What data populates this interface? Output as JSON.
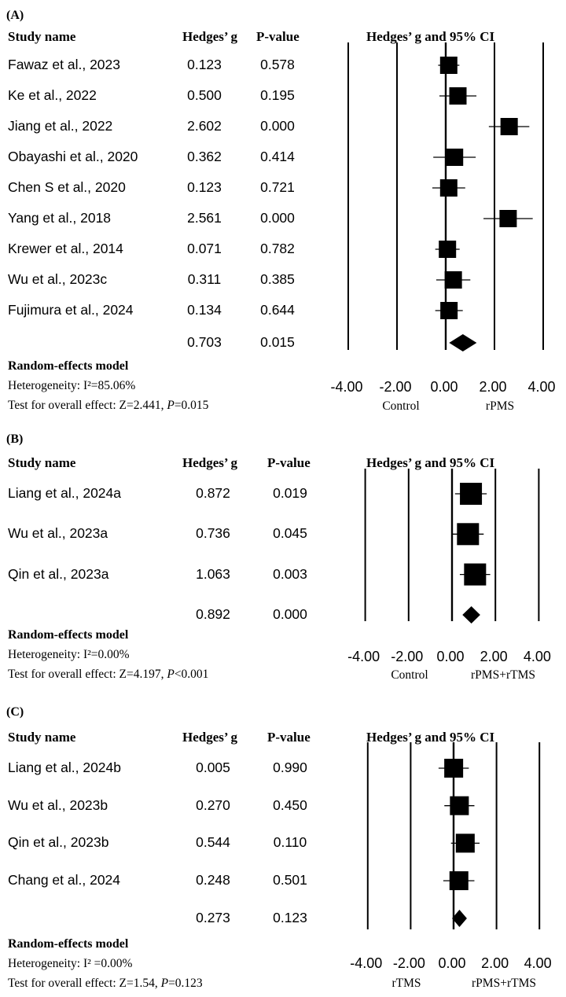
{
  "chart_data": [
    {
      "type": "forest",
      "panel_label": "(A)",
      "headers": {
        "study": "Study name",
        "g": "Hedges’ g",
        "p": "P-value",
        "ci": "Hedges’ g and 95% CI"
      },
      "studies": [
        {
          "name": "Fawaz et al., 2023",
          "g": "0.123",
          "p": "0.578",
          "value": 0.123,
          "lo": -0.31,
          "hi": 0.56
        },
        {
          "name": "Ke et al., 2022",
          "g": "0.500",
          "p": "0.195",
          "value": 0.5,
          "lo": -0.26,
          "hi": 1.26
        },
        {
          "name": "Jiang et al., 2022",
          "g": "2.602",
          "p": "0.000",
          "value": 2.602,
          "lo": 1.77,
          "hi": 3.43
        },
        {
          "name": "Obayashi et al., 2020",
          "g": "0.362",
          "p": "0.414",
          "value": 0.362,
          "lo": -0.51,
          "hi": 1.23
        },
        {
          "name": "Chen S et al., 2020",
          "g": "0.123",
          "p": "0.721",
          "value": 0.123,
          "lo": -0.55,
          "hi": 0.8
        },
        {
          "name": "Yang et al., 2018",
          "g": "2.561",
          "p": "0.000",
          "value": 2.561,
          "lo": 1.55,
          "hi": 3.57
        },
        {
          "name": "Krewer et al., 2014",
          "g": "0.071",
          "p": "0.782",
          "value": 0.071,
          "lo": -0.43,
          "hi": 0.57
        },
        {
          "name": "Wu et al., 2023c",
          "g": "0.311",
          "p": "0.385",
          "value": 0.311,
          "lo": -0.39,
          "hi": 1.01
        },
        {
          "name": "Fujimura et al., 2024",
          "g": "0.134",
          "p": "0.644",
          "value": 0.134,
          "lo": -0.43,
          "hi": 0.7
        }
      ],
      "summary": {
        "g": "0.703",
        "p": "0.015",
        "value": 0.703,
        "lo": 0.14,
        "hi": 1.27
      },
      "model_label": "Random-effects model",
      "heterogeneity": "Heterogeneity: I²=85.06%",
      "overall_prefix": "Test for overall effect: Z=2.441, ",
      "overall_p_letter": "P",
      "overall_p_rest": "=0.015",
      "ticks": [
        -4,
        -2,
        0,
        2,
        4
      ],
      "tick_labels": [
        "-4.00",
        "-2.00",
        "0.00",
        "2.00",
        "4.00"
      ],
      "left_label": "Control",
      "right_label": "rPMS"
    },
    {
      "type": "forest",
      "panel_label": "(B)",
      "headers": {
        "study": "Study name",
        "g": "Hedges’ g",
        "p": "P-value",
        "ci": "Hedges’ g and 95% CI"
      },
      "studies": [
        {
          "name": "Liang et al., 2024a",
          "g": "0.872",
          "p": "0.019",
          "value": 0.872,
          "lo": 0.14,
          "hi": 1.6
        },
        {
          "name": "Wu et al., 2023a",
          "g": "0.736",
          "p": "0.045",
          "value": 0.736,
          "lo": 0.02,
          "hi": 1.46
        },
        {
          "name": "Qin et al., 2023a",
          "g": "1.063",
          "p": "0.003",
          "value": 1.063,
          "lo": 0.36,
          "hi": 1.76
        }
      ],
      "summary": {
        "g": "0.892",
        "p": "0.000",
        "value": 0.892,
        "lo": 0.48,
        "hi": 1.3
      },
      "model_label": "Random-effects model",
      "heterogeneity": "Heterogeneity: I²=0.00%",
      "overall_prefix": "Test for overall effect: Z=4.197, ",
      "overall_p_letter": "P",
      "overall_p_rest": "<0.001",
      "ticks": [
        -4,
        -2,
        0,
        2,
        4
      ],
      "tick_labels": [
        "-4.00",
        "-2.00",
        "0.00",
        "2.00",
        "4.00"
      ],
      "left_label": "Control",
      "right_label": "rPMS+rTMS"
    },
    {
      "type": "forest",
      "panel_label": "(C)",
      "headers": {
        "study": "Study name",
        "g": "Hedges’ g",
        "p": "P-value",
        "ci": "Hedges’ g and 95% CI"
      },
      "studies": [
        {
          "name": "Liang et al., 2024b",
          "g": "0.005",
          "p": "0.990",
          "value": 0.005,
          "lo": -0.7,
          "hi": 0.71
        },
        {
          "name": "Wu et al., 2023b",
          "g": "0.270",
          "p": "0.450",
          "value": 0.27,
          "lo": -0.43,
          "hi": 0.97
        },
        {
          "name": "Qin et al., 2023b",
          "g": "0.544",
          "p": "0.110",
          "value": 0.544,
          "lo": -0.12,
          "hi": 1.21
        },
        {
          "name": "Chang et al., 2024",
          "g": "0.248",
          "p": "0.501",
          "value": 0.248,
          "lo": -0.48,
          "hi": 0.97
        }
      ],
      "summary": {
        "g": "0.273",
        "p": "0.123",
        "value": 0.273,
        "lo": -0.07,
        "hi": 0.62
      },
      "model_label": "Random-effects model",
      "heterogeneity": "Heterogeneity: I² =0.00%",
      "overall_prefix": "Test for overall effect: Z=1.54, ",
      "overall_p_letter": "P",
      "overall_p_rest": "=0.123",
      "ticks": [
        -4,
        -2,
        0,
        2,
        4
      ],
      "tick_labels": [
        "-4.00",
        "-2.00",
        "0.00",
        "2.00",
        "4.00"
      ],
      "left_label": "rTMS",
      "right_label": "rPMS+rTMS"
    }
  ]
}
